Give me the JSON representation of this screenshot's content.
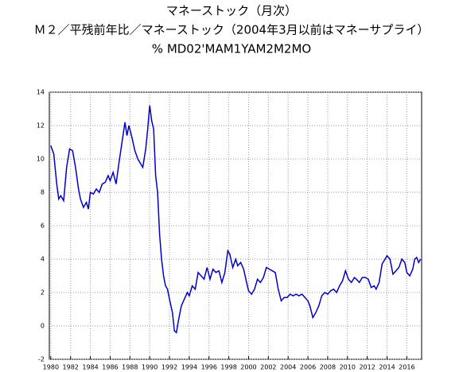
{
  "chart_data": {
    "type": "line",
    "title": "マネーストック（月次）",
    "subtitle": "Ｍ２／平残前年比／マネーストック（2004年3月以前はマネーサプライ）",
    "series_code": "% MD02'MAM1YAM2M2MO",
    "xlim": [
      1979.85,
      2017.5
    ],
    "ylim": [
      -2,
      14
    ],
    "xticks": [
      1980,
      1982,
      1984,
      1986,
      1988,
      1990,
      1992,
      1994,
      1996,
      1998,
      2000,
      2002,
      2004,
      2006,
      2008,
      2010,
      2012,
      2014,
      2016
    ],
    "yticks": [
      -2,
      0,
      2,
      4,
      6,
      8,
      10,
      12,
      14
    ],
    "grid": true,
    "x": [
      1980.0,
      1980.3,
      1980.6,
      1980.8,
      1981.0,
      1981.3,
      1981.6,
      1981.9,
      1982.2,
      1982.5,
      1982.8,
      1983.0,
      1983.3,
      1983.6,
      1983.8,
      1984.0,
      1984.3,
      1984.6,
      1984.9,
      1985.2,
      1985.5,
      1985.8,
      1986.0,
      1986.3,
      1986.6,
      1986.9,
      1987.2,
      1987.5,
      1987.7,
      1987.9,
      1988.2,
      1988.5,
      1988.8,
      1989.0,
      1989.3,
      1989.6,
      1989.8,
      1990.0,
      1990.2,
      1990.4,
      1990.6,
      1990.8,
      1991.0,
      1991.2,
      1991.4,
      1991.6,
      1991.8,
      1992.0,
      1992.3,
      1992.5,
      1992.7,
      1992.9,
      1993.2,
      1993.5,
      1993.8,
      1994.0,
      1994.3,
      1994.6,
      1994.9,
      1995.2,
      1995.5,
      1995.8,
      1996.1,
      1996.4,
      1996.7,
      1997.0,
      1997.3,
      1997.6,
      1997.9,
      1998.1,
      1998.4,
      1998.7,
      1998.9,
      1999.2,
      1999.5,
      1999.8,
      2000.0,
      2000.3,
      2000.6,
      2000.9,
      2001.2,
      2001.5,
      2001.8,
      2002.1,
      2002.4,
      2002.7,
      2003.0,
      2003.3,
      2003.6,
      2003.9,
      2004.2,
      2004.5,
      2004.8,
      2005.1,
      2005.4,
      2005.7,
      2006.0,
      2006.2,
      2006.5,
      2006.8,
      2007.1,
      2007.4,
      2007.7,
      2008.0,
      2008.3,
      2008.6,
      2008.9,
      2009.2,
      2009.5,
      2009.8,
      2010.1,
      2010.4,
      2010.7,
      2010.9,
      2011.2,
      2011.5,
      2011.8,
      2012.1,
      2012.4,
      2012.7,
      2012.9,
      2013.2,
      2013.5,
      2013.8,
      2014.0,
      2014.3,
      2014.6,
      2014.9,
      2015.2,
      2015.5,
      2015.8,
      2016.0,
      2016.3,
      2016.6,
      2016.8,
      2017.0,
      2017.2,
      2017.4
    ],
    "series": [
      {
        "color": "#0000cc",
        "values": [
          10.8,
          10.3,
          8.5,
          7.6,
          7.8,
          7.5,
          9.5,
          10.6,
          10.5,
          9.5,
          8.2,
          7.6,
          7.1,
          7.4,
          7.0,
          8.0,
          7.9,
          8.2,
          8.0,
          8.5,
          8.6,
          9.0,
          8.7,
          9.2,
          8.5,
          9.8,
          11.0,
          12.2,
          11.4,
          12.0,
          11.3,
          10.5,
          10.0,
          9.8,
          9.5,
          10.6,
          11.8,
          13.2,
          12.3,
          11.8,
          9.0,
          8.0,
          5.5,
          4.0,
          3.0,
          2.4,
          2.2,
          1.6,
          0.8,
          -0.3,
          -0.4,
          0.3,
          1.2,
          1.6,
          2.0,
          1.8,
          2.4,
          2.2,
          3.2,
          3.0,
          2.8,
          3.5,
          2.8,
          3.4,
          3.2,
          3.3,
          2.6,
          3.2,
          4.5,
          4.3,
          3.5,
          4.0,
          3.6,
          3.8,
          3.4,
          2.6,
          2.1,
          1.9,
          2.2,
          2.8,
          2.6,
          2.9,
          3.5,
          3.4,
          3.3,
          3.2,
          2.2,
          1.5,
          1.7,
          1.7,
          1.9,
          1.8,
          1.9,
          1.8,
          1.9,
          1.7,
          1.5,
          1.2,
          0.5,
          0.8,
          1.2,
          1.8,
          2.0,
          1.9,
          2.1,
          2.2,
          2.0,
          2.4,
          2.7,
          3.3,
          2.8,
          2.6,
          2.9,
          2.8,
          2.6,
          2.9,
          2.9,
          2.8,
          2.3,
          2.4,
          2.2,
          2.6,
          3.7,
          4.0,
          4.2,
          4.0,
          3.1,
          3.3,
          3.5,
          4.0,
          3.8,
          3.2,
          3.0,
          3.4,
          4.0,
          4.1,
          3.8,
          4.0
        ]
      }
    ]
  }
}
